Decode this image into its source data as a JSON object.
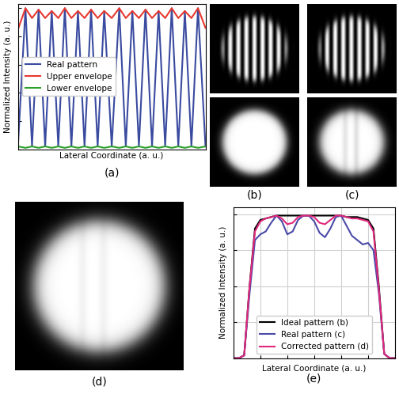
{
  "chart_data": [
    {
      "type": "line",
      "title": "(a)",
      "xlabel": "Lateral Coordinate (a. u.)",
      "ylabel": "Normalized Intensity (a. u.)",
      "x": [
        0,
        4,
        7.5,
        11,
        14.5,
        18,
        21.5,
        25,
        28.5,
        32,
        35.5,
        39,
        42.5,
        46,
        50,
        54,
        57.5,
        61,
        64.5,
        68,
        71.5,
        75,
        78.5,
        82,
        85.5,
        89,
        92.5,
        96,
        100
      ],
      "series": [
        {
          "name": "Real pattern",
          "color": "#3a4ba0",
          "values": [
            0.02,
            1.0,
            0.02,
            0.99,
            0.02,
            0.98,
            0.02,
            1.0,
            0.02,
            0.98,
            0.02,
            0.99,
            0.02,
            0.98,
            0.02,
            1.0,
            0.02,
            0.98,
            0.02,
            0.99,
            0.02,
            0.98,
            0.02,
            1.0,
            0.02,
            0.98,
            0.02,
            1.0,
            0.02
          ]
        },
        {
          "name": "Upper envelope",
          "color": "#e8382f",
          "values": [
            0.85,
            1.0,
            0.93,
            0.99,
            0.93,
            0.98,
            0.93,
            1.0,
            0.93,
            0.98,
            0.93,
            0.99,
            0.93,
            0.98,
            0.93,
            1.0,
            0.93,
            0.98,
            0.93,
            0.99,
            0.93,
            0.98,
            0.93,
            1.0,
            0.93,
            0.98,
            0.93,
            1.0,
            0.86
          ]
        },
        {
          "name": "Lower envelope",
          "color": "#2ca02c",
          "values": [
            0.02,
            0.01,
            0.02,
            0.01,
            0.02,
            0.01,
            0.02,
            0.01,
            0.02,
            0.01,
            0.02,
            0.01,
            0.02,
            0.01,
            0.02,
            0.01,
            0.02,
            0.01,
            0.02,
            0.01,
            0.02,
            0.01,
            0.02,
            0.01,
            0.02,
            0.01,
            0.02,
            0.01,
            0.02
          ]
        }
      ],
      "xlim": [
        0,
        100
      ],
      "ylim": [
        0,
        1.03
      ],
      "xticks": [],
      "yticks": [
        0,
        0.2,
        0.4,
        0.6,
        0.8,
        1.0
      ],
      "tick_labels": false,
      "grid": false,
      "legend": "center left"
    },
    {
      "type": "line",
      "title": "(e)",
      "xlabel": "Lateral Coordinate (a. u.)",
      "ylabel": "Normalized Intensity (a. u.)",
      "x": [
        0,
        2,
        4,
        6,
        8,
        10,
        12,
        14,
        16,
        18,
        20,
        22,
        24,
        26,
        28,
        30,
        32,
        34,
        36,
        38,
        40,
        42,
        44,
        46,
        48,
        50,
        52,
        54,
        56,
        58,
        60
      ],
      "series": [
        {
          "name": "Ideal pattern (b)",
          "color": "#000000",
          "values": [
            0,
            0,
            0.02,
            0.5,
            0.9,
            0.96,
            0.97,
            0.98,
            0.99,
            0.99,
            0.99,
            0.99,
            0.99,
            0.99,
            0.99,
            0.99,
            0.99,
            0.99,
            0.99,
            0.99,
            0.99,
            0.98,
            0.98,
            0.98,
            0.97,
            0.96,
            0.9,
            0.5,
            0.03,
            0,
            0
          ]
        },
        {
          "name": "Real pattern (c)",
          "color": "#4a4aa8",
          "values": [
            0,
            0,
            0.02,
            0.45,
            0.82,
            0.86,
            0.88,
            0.94,
            0.99,
            0.95,
            0.86,
            0.88,
            0.96,
            0.99,
            0.99,
            0.95,
            0.87,
            0.84,
            0.9,
            0.98,
            0.99,
            0.92,
            0.85,
            0.82,
            0.79,
            0.8,
            0.75,
            0.45,
            0.03,
            0,
            0
          ]
        },
        {
          "name": "Corrected pattern (d)",
          "color": "#e0287d",
          "values": [
            0,
            0,
            0.02,
            0.5,
            0.88,
            0.95,
            0.97,
            0.98,
            0.99,
            0.97,
            0.93,
            0.94,
            0.98,
            0.99,
            0.99,
            0.98,
            0.94,
            0.93,
            0.96,
            0.99,
            0.99,
            0.98,
            0.97,
            0.97,
            0.96,
            0.95,
            0.88,
            0.48,
            0.03,
            0,
            0
          ]
        }
      ],
      "xlim": [
        0,
        60
      ],
      "ylim": [
        0,
        1.05
      ],
      "xticks": [
        0,
        10,
        20,
        30,
        40,
        50,
        60
      ],
      "yticks": [
        0,
        0.25,
        0.5,
        0.75,
        1.0
      ],
      "tick_labels": false,
      "grid": true,
      "legend": "lower center"
    }
  ],
  "images": [
    {
      "title": "(b)"
    },
    {
      "title": "(c)"
    },
    {
      "title": "(d)"
    }
  ]
}
